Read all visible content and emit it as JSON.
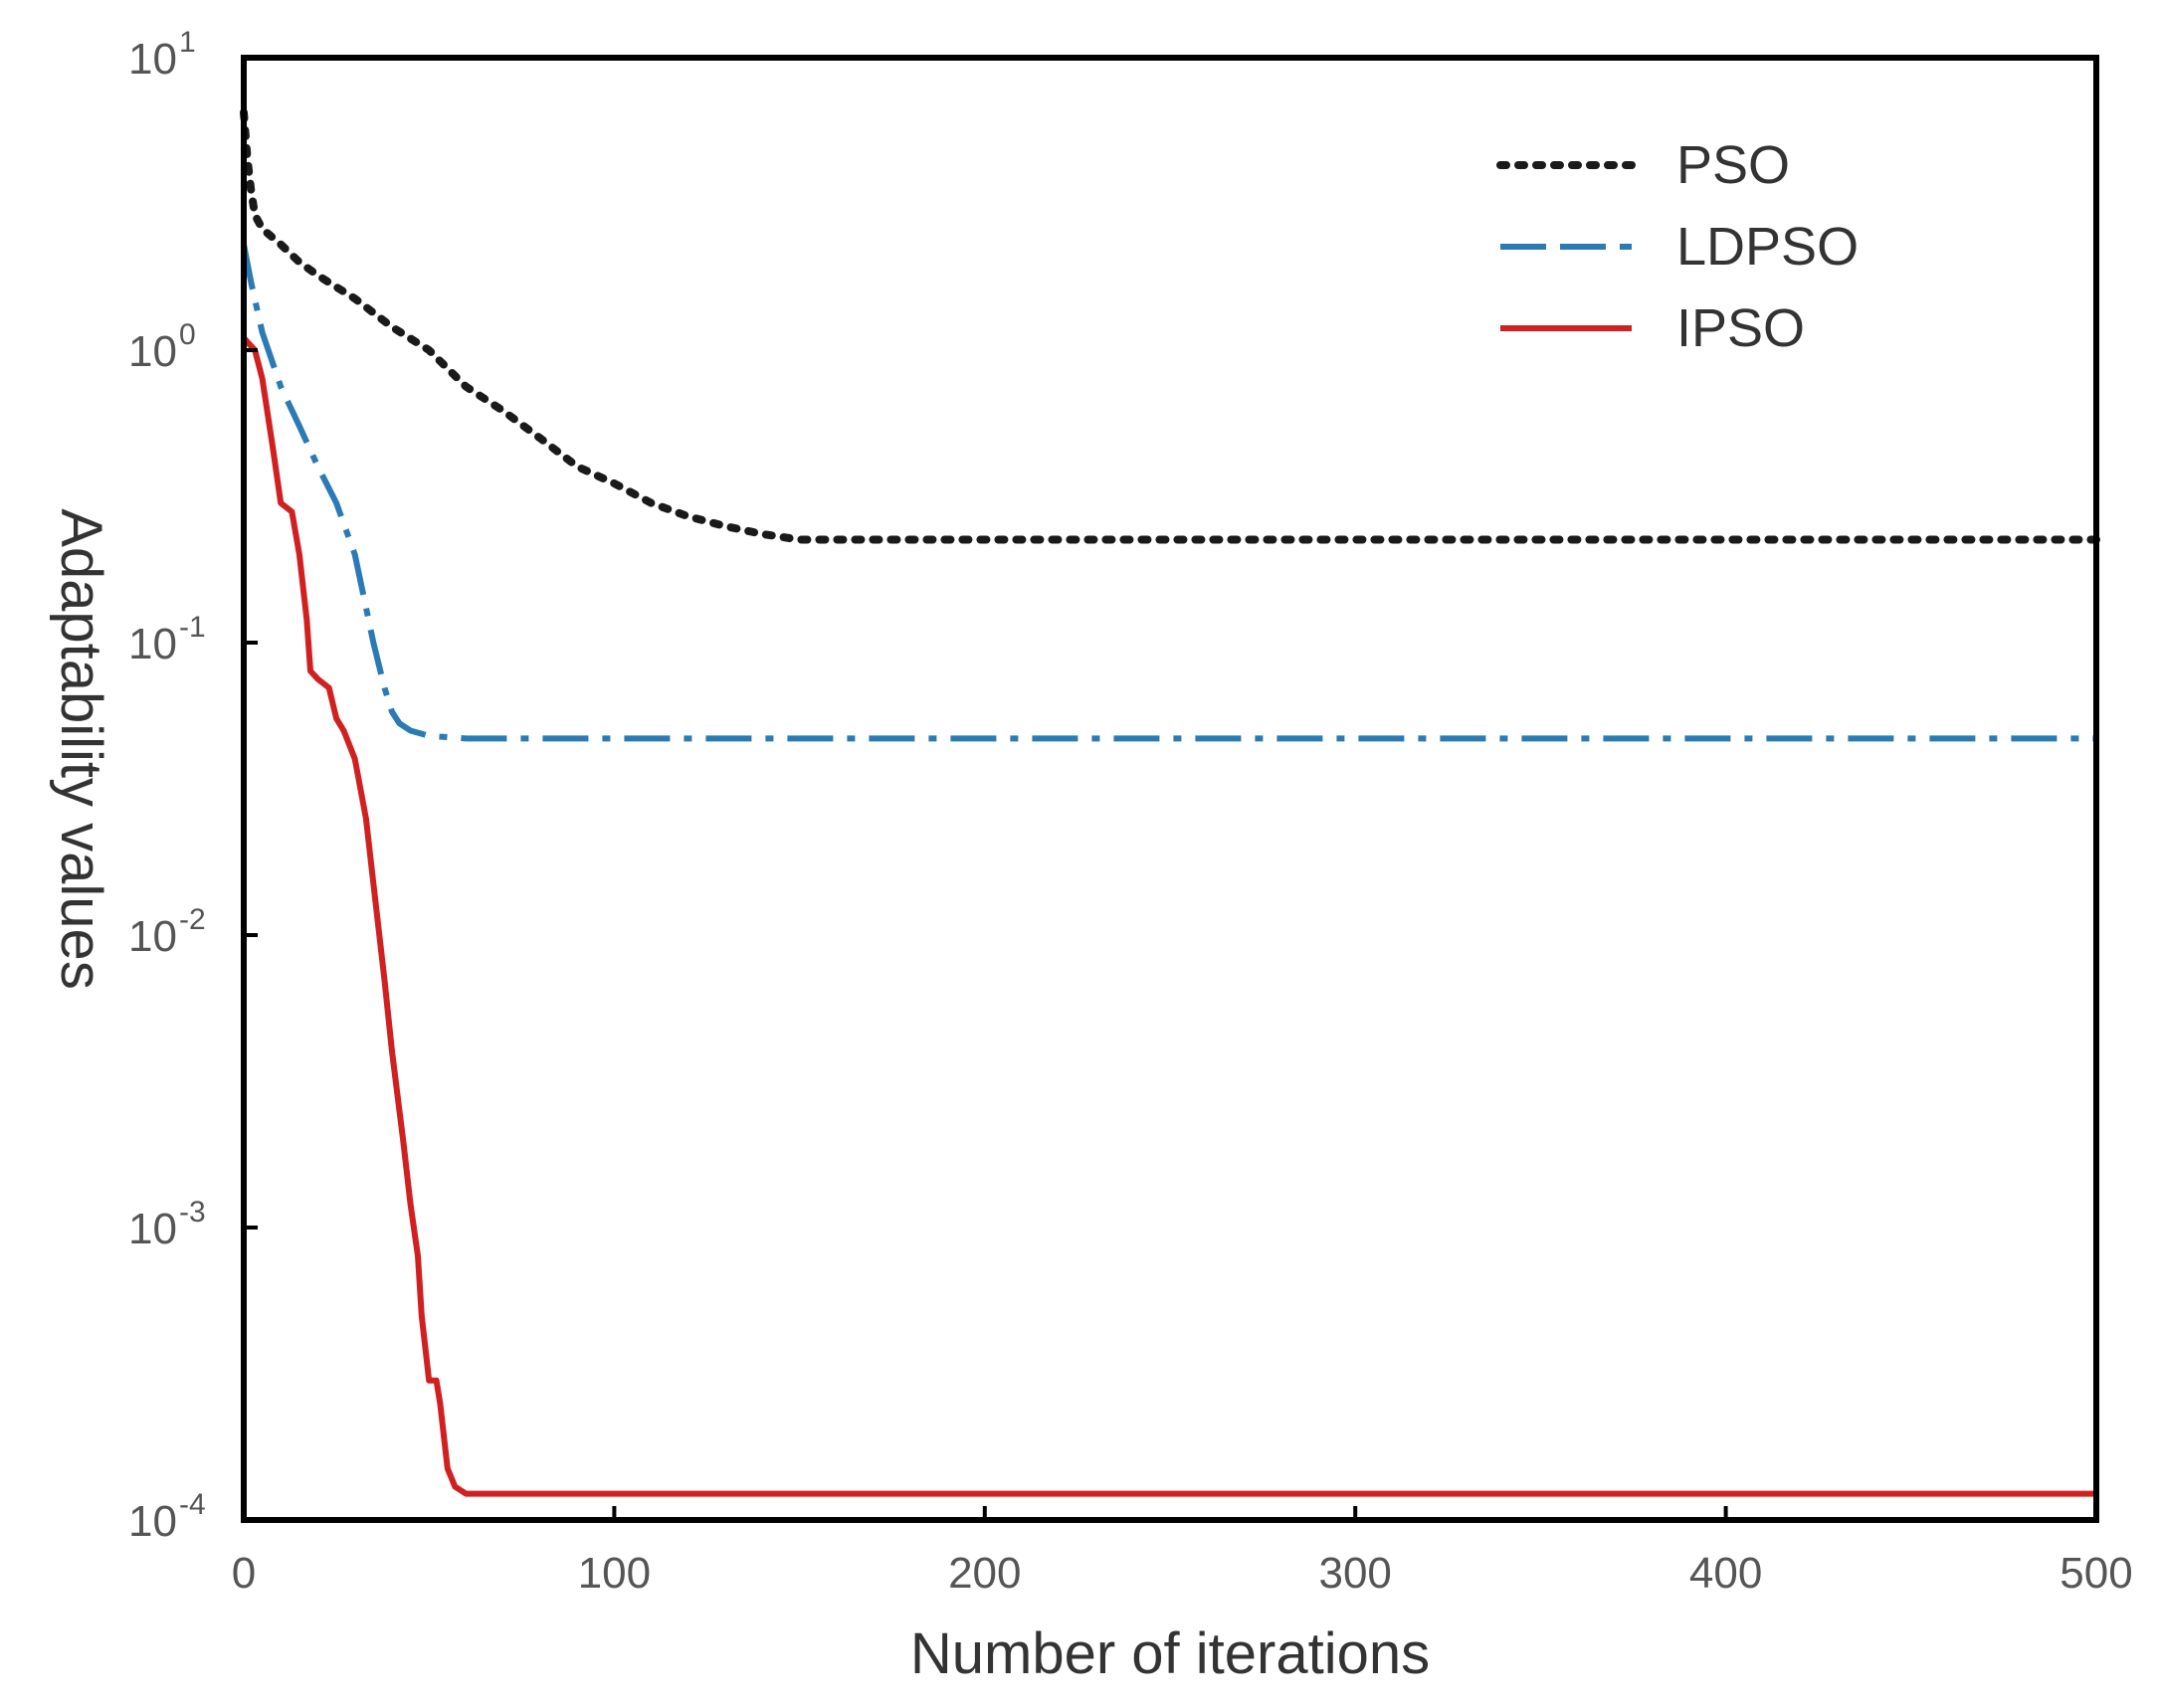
{
  "chart_data": {
    "type": "line",
    "title": "",
    "xlabel": "Number of iterations",
    "ylabel": "Adaptability values",
    "xlim": [
      0,
      500
    ],
    "ylim": [
      0.0001,
      10
    ],
    "yscale": "log",
    "grid": false,
    "legend_position": "top-right",
    "x_ticks": [
      0,
      100,
      200,
      300,
      400,
      500
    ],
    "x_tick_labels": [
      "0",
      "100",
      "200",
      "300",
      "400",
      "500"
    ],
    "y_tick_exponents": [
      1,
      0,
      -1,
      -2,
      -3,
      -4
    ],
    "y_tick_labels": [
      {
        "base": "10",
        "exp": "1"
      },
      {
        "base": "10",
        "exp": "0"
      },
      {
        "base": "10",
        "exp": "-1"
      },
      {
        "base": "10",
        "exp": "-2"
      },
      {
        "base": "10",
        "exp": "-3"
      },
      {
        "base": "10",
        "exp": "-4"
      }
    ],
    "series": [
      {
        "name": "PSO",
        "color": "#1a1a1a",
        "style": "dotted",
        "x": [
          0,
          1,
          2,
          3,
          5,
          10,
          15,
          20,
          30,
          40,
          50,
          60,
          70,
          80,
          90,
          100,
          110,
          120,
          130,
          140,
          150,
          200,
          300,
          400,
          500
        ],
        "y": [
          6.5,
          4.5,
          3.5,
          2.9,
          2.6,
          2.3,
          2.0,
          1.8,
          1.5,
          1.2,
          1.0,
          0.75,
          0.62,
          0.5,
          0.4,
          0.35,
          0.3,
          0.27,
          0.25,
          0.235,
          0.225,
          0.225,
          0.225,
          0.225,
          0.225
        ]
      },
      {
        "name": "LDPSO",
        "color": "#2a7ab5",
        "style": "dashdot",
        "x": [
          0,
          2,
          5,
          10,
          15,
          20,
          25,
          30,
          35,
          38,
          40,
          42,
          45,
          50,
          60,
          100,
          200,
          300,
          400,
          500
        ],
        "y": [
          2.3,
          1.7,
          1.15,
          0.75,
          0.55,
          0.4,
          0.3,
          0.2,
          0.1,
          0.07,
          0.058,
          0.053,
          0.05,
          0.048,
          0.047,
          0.047,
          0.047,
          0.047,
          0.047,
          0.047
        ]
      },
      {
        "name": "IPSO",
        "color": "#d02020",
        "style": "solid",
        "x": [
          0,
          3,
          5,
          8,
          10,
          13,
          15,
          17,
          18,
          20,
          23,
          25,
          27,
          30,
          33,
          35,
          38,
          40,
          43,
          45,
          47,
          48,
          50,
          52,
          53,
          55,
          57,
          60,
          62,
          70,
          100,
          200,
          300,
          400,
          500
        ],
        "y": [
          1.1,
          1.0,
          0.8,
          0.45,
          0.3,
          0.28,
          0.2,
          0.12,
          0.08,
          0.075,
          0.07,
          0.055,
          0.05,
          0.04,
          0.025,
          0.015,
          0.007,
          0.004,
          0.002,
          0.0012,
          0.0008,
          0.0005,
          0.0003,
          0.0003,
          0.00025,
          0.00015,
          0.00013,
          0.000123,
          0.000123,
          0.000123,
          0.000123,
          0.000123,
          0.000123,
          0.000123,
          0.000123
        ]
      }
    ]
  }
}
